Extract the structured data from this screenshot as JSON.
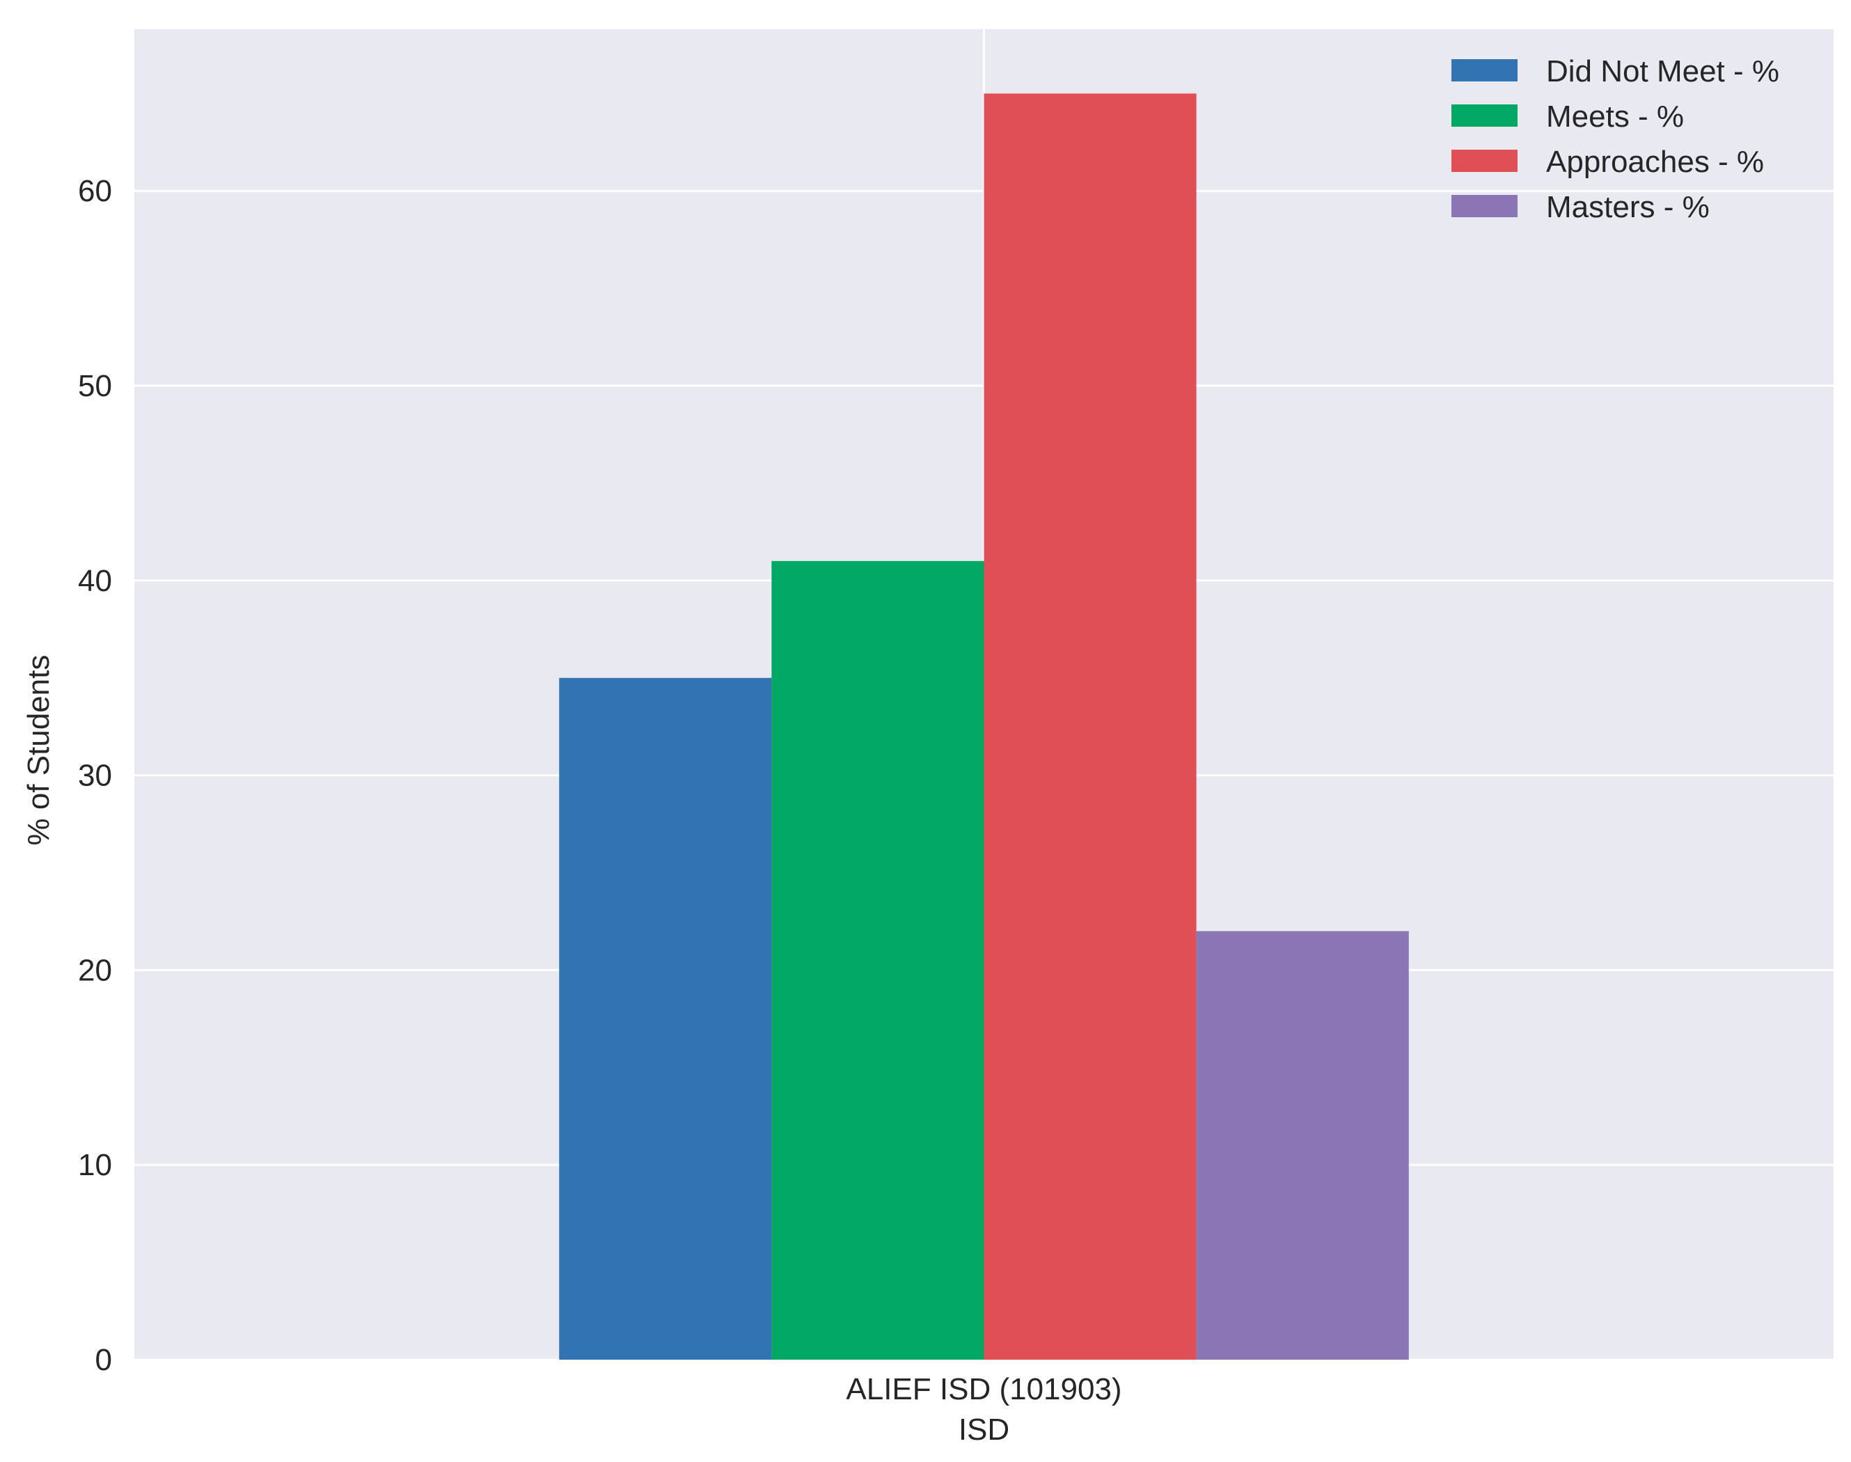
{
  "chart_data": {
    "type": "bar",
    "categories": [
      "ALIEF ISD (101903)"
    ],
    "series": [
      {
        "name": "Did Not Meet - %",
        "values": [
          35
        ],
        "color": "#3274b2"
      },
      {
        "name": "Meets - %",
        "values": [
          41
        ],
        "color": "#00a864"
      },
      {
        "name": "Approaches - %",
        "values": [
          65
        ],
        "color": "#e04f55"
      },
      {
        "name": "Masters - %",
        "values": [
          22
        ],
        "color": "#8a76b4"
      }
    ],
    "title": "",
    "xlabel": "ISD",
    "ylabel": "% of Students",
    "ylim": [
      0,
      68.3
    ],
    "yticks": [
      0,
      10,
      20,
      30,
      40,
      50,
      60
    ],
    "grid": true,
    "legend_position": "top-right",
    "background_color": "#e9e9f2",
    "grid_color": "#ffffff"
  }
}
